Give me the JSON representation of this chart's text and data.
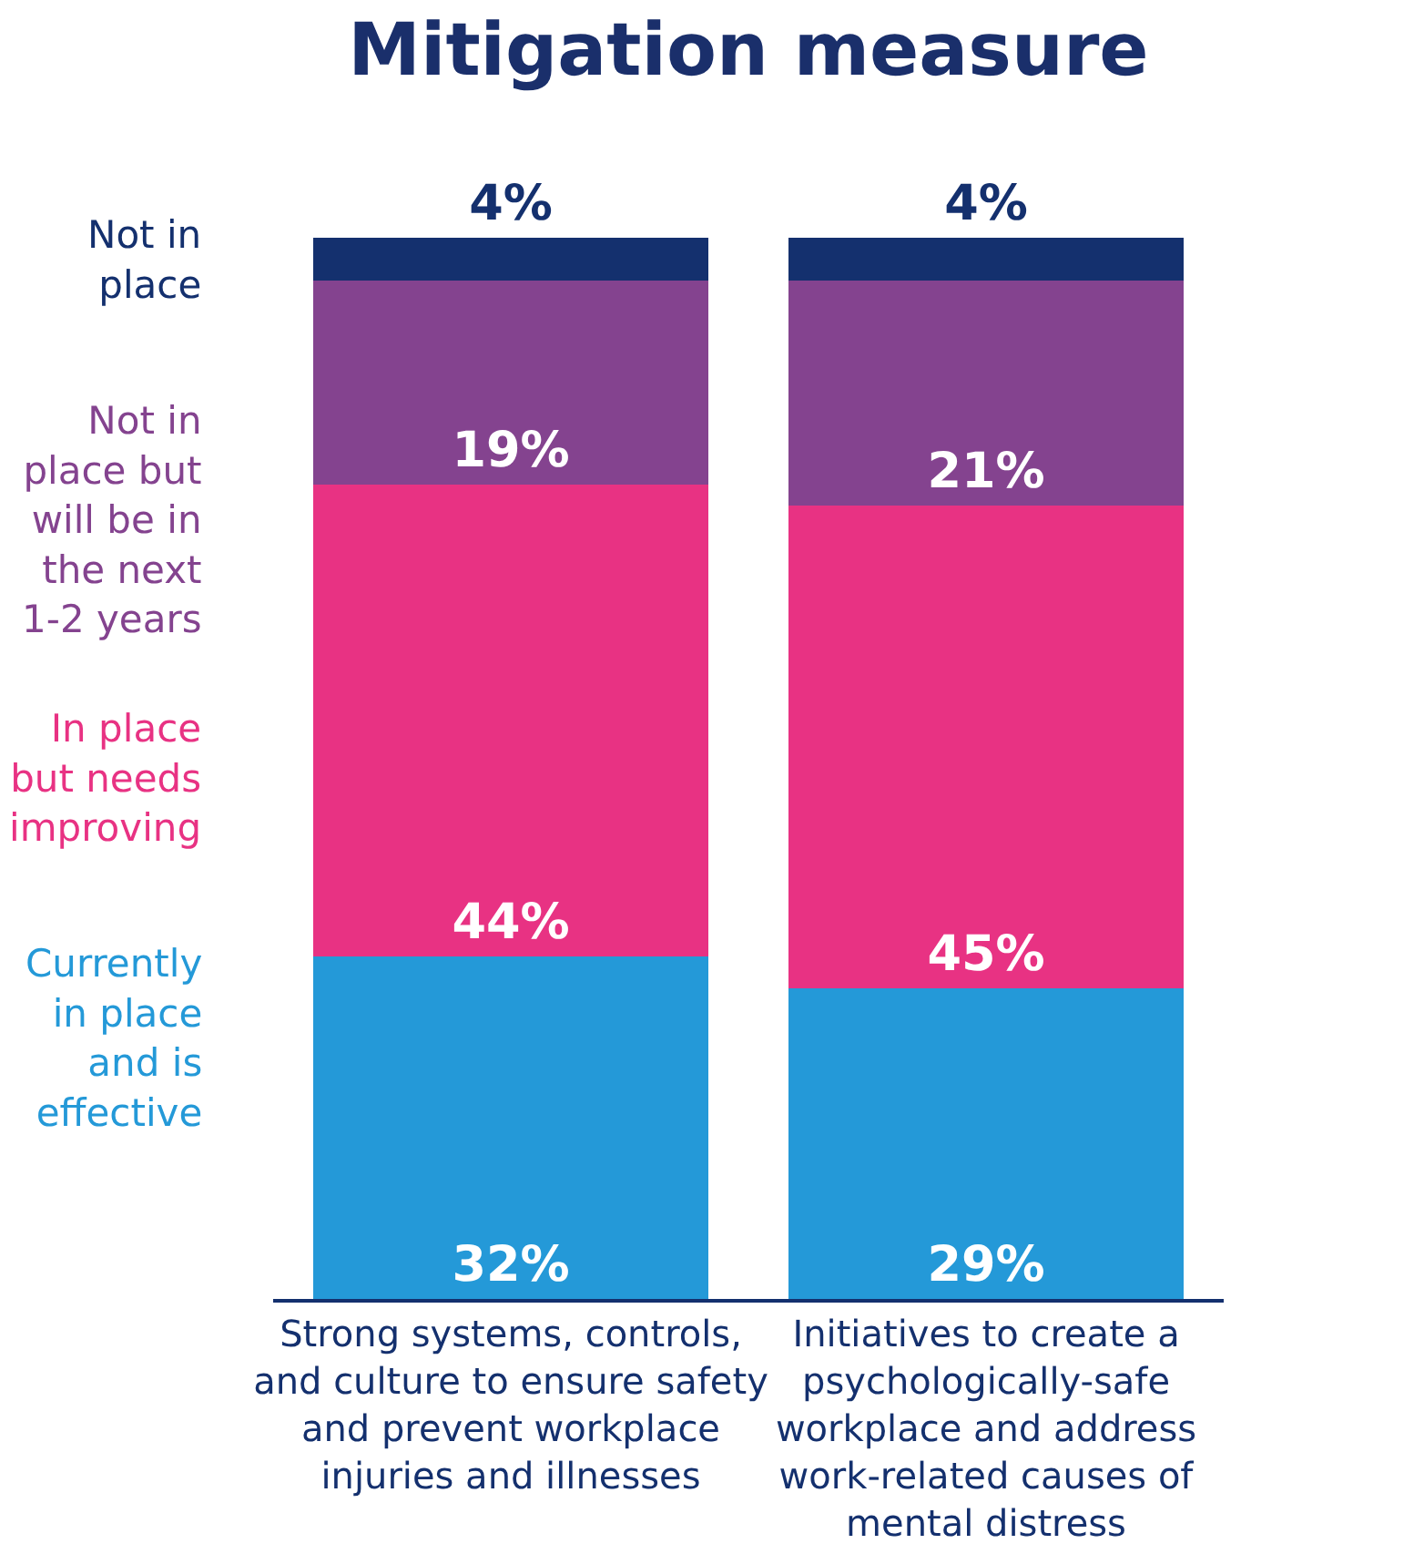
{
  "chart_data": {
    "type": "bar",
    "title": "Mitigation measure",
    "stacked": true,
    "legend": "left",
    "categories": [
      "Strong systems, controls, and culture to ensure safety and prevent workplace injuries and illnesses",
      "Initiatives to create a psychologically-safe workplace and address work-related causes of mental distress"
    ],
    "series": [
      {
        "name": "Currently in place and is effective",
        "color": "#2499d8",
        "values": [
          32,
          29
        ],
        "value_labels": [
          "32%",
          "29%"
        ]
      },
      {
        "name": "In place but needs improving",
        "color": "#e83283",
        "values": [
          44,
          45
        ],
        "value_labels": [
          "44%",
          "45%"
        ]
      },
      {
        "name": "Not in place but will be in the next 1-2 years",
        "color": "#84438f",
        "values": [
          19,
          21
        ],
        "value_labels": [
          "19%",
          "21%"
        ]
      },
      {
        "name": "Not in place",
        "color": "#14306e",
        "values": [
          4,
          4
        ],
        "value_labels": [
          "4%",
          "4%"
        ]
      }
    ]
  }
}
